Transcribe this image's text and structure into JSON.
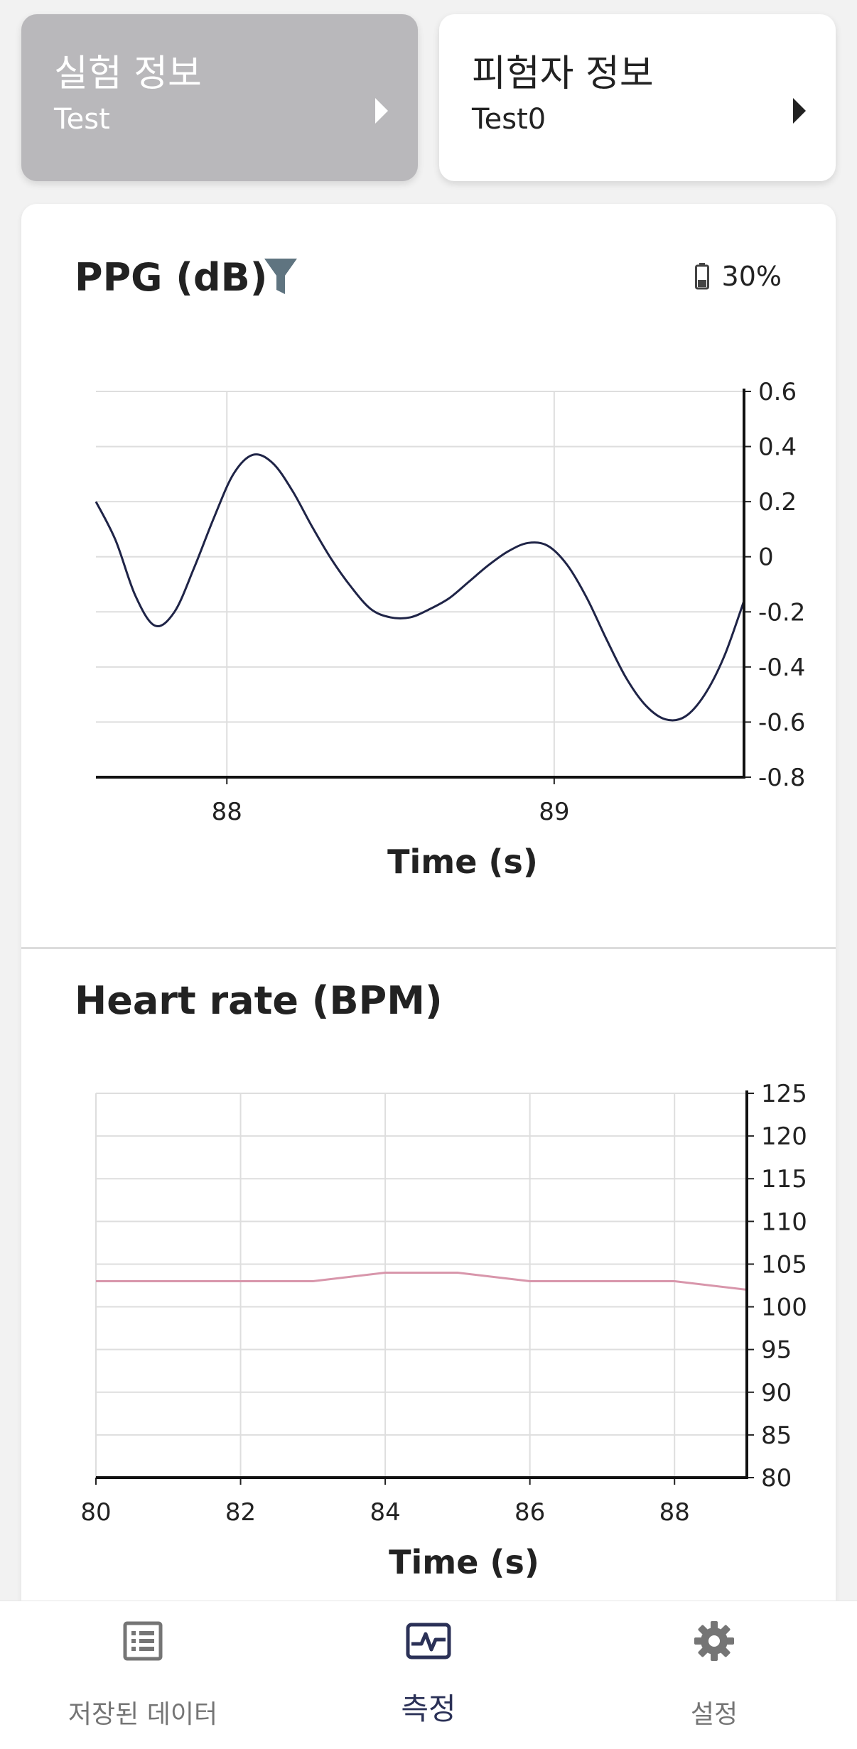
{
  "experiment_card": {
    "title": "실험 정보",
    "subtitle": "Test"
  },
  "subject_card": {
    "title": "피험자 정보",
    "subtitle": "Test0"
  },
  "ppg": {
    "title": "PPG (dB)",
    "filter_icon": "filter-icon",
    "battery_icon": "battery-icon",
    "battery_text": "30%"
  },
  "heart_rate": {
    "title": "Heart rate (BPM)"
  },
  "chart_data": [
    {
      "type": "line",
      "title": "PPG (dB)",
      "xlabel": "Time (s)",
      "ylabel": "",
      "xlim": [
        87.6,
        89.58
      ],
      "ylim": [
        -0.8,
        0.6
      ],
      "xticks": [
        88,
        89
      ],
      "yticks": [
        0.6,
        0.4,
        0.2,
        0,
        -0.2,
        -0.4,
        -0.6,
        -0.8
      ],
      "grid": true,
      "color": "#1f2447",
      "series": [
        {
          "x": [
            87.6,
            87.66,
            87.72,
            87.78,
            87.84,
            87.9,
            87.96,
            88.02,
            88.08,
            88.14,
            88.2,
            88.26,
            88.32,
            88.38,
            88.44,
            88.5,
            88.56,
            88.62,
            88.68,
            88.74,
            88.8,
            88.86,
            88.92,
            88.98,
            89.04,
            89.1,
            89.16,
            89.22,
            89.28,
            89.34,
            89.4,
            89.46,
            89.52,
            89.58
          ],
          "y": [
            0.2,
            0.06,
            -0.14,
            -0.25,
            -0.2,
            -0.04,
            0.14,
            0.3,
            0.37,
            0.34,
            0.24,
            0.11,
            -0.01,
            -0.11,
            -0.19,
            -0.22,
            -0.22,
            -0.19,
            -0.15,
            -0.09,
            -0.03,
            0.02,
            0.05,
            0.04,
            -0.03,
            -0.15,
            -0.3,
            -0.44,
            -0.54,
            -0.59,
            -0.58,
            -0.5,
            -0.36,
            -0.16
          ]
        }
      ]
    },
    {
      "type": "line",
      "title": "Heart rate (BPM)",
      "xlabel": "Time (s)",
      "ylabel": "",
      "xlim": [
        80,
        89
      ],
      "ylim": [
        80,
        125
      ],
      "xticks": [
        80,
        82,
        84,
        86,
        88
      ],
      "yticks": [
        125,
        120,
        115,
        110,
        105,
        100,
        95,
        90,
        85,
        80
      ],
      "grid": true,
      "color": "#d896ab",
      "series": [
        {
          "x": [
            80,
            81,
            82,
            83,
            84,
            85,
            86,
            87,
            88,
            89
          ],
          "y": [
            103,
            103,
            103,
            103,
            104,
            104,
            103,
            103,
            103,
            102
          ]
        }
      ]
    }
  ],
  "bottom_nav": {
    "items": [
      {
        "label": "저장된 데이터",
        "icon": "list-icon",
        "color": "#757575"
      },
      {
        "label": "측정",
        "icon": "heartbeat-monitor-icon",
        "color": "#2b3157"
      },
      {
        "label": "설정",
        "icon": "gear-icon",
        "color": "#757575"
      }
    ]
  }
}
